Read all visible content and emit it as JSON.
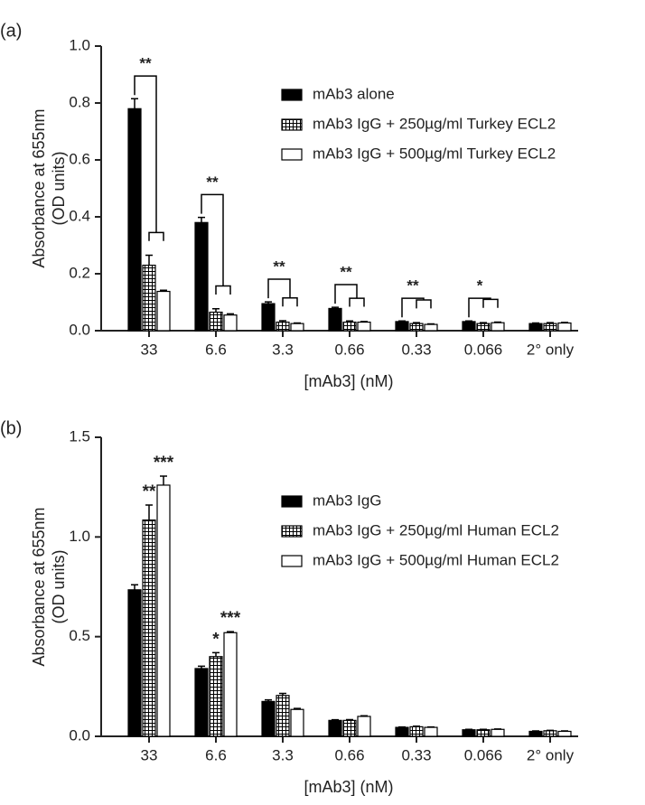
{
  "chart_data": [
    {
      "type": "bar",
      "label": "(a)",
      "ylabel": [
        "Absorbance at 655nm",
        "(OD units)"
      ],
      "xlabel": "[mAb3] (nM)",
      "categories": [
        "33",
        "6.6",
        "3.3",
        "0.66",
        "0.33",
        "0.066",
        "2° only"
      ],
      "ylim": [
        0,
        1
      ],
      "yticks": [
        {
          "value": 0,
          "label": "0.0"
        },
        0.2,
        0.4,
        0.6,
        0.8,
        {
          "value": 1,
          "label": "1.0"
        }
      ],
      "legend": "upper right",
      "series": [
        {
          "name": "mAb3 alone",
          "color": "#000000",
          "pattern": "solid",
          "values": [
            0.78,
            0.38,
            0.095,
            0.078,
            0.032,
            0.032,
            0.025
          ],
          "errors": [
            0.035,
            0.018,
            0.006,
            0.004,
            0.002,
            0.002,
            0.002
          ]
        },
        {
          "name": "mAb3 IgG + 250µg/ml Turkey ECL2",
          "color": "#000000",
          "pattern": "grid",
          "values": [
            0.23,
            0.065,
            0.03,
            0.03,
            0.025,
            0.025,
            0.025
          ],
          "errors": [
            0.035,
            0.012,
            0.005,
            0.004,
            0.003,
            0.003,
            0.003
          ]
        },
        {
          "name": "mAb3 IgG + 500µg/ml Turkey ECL2",
          "color": "#ffffff",
          "pattern": "solid",
          "values": [
            0.138,
            0.055,
            0.025,
            0.03,
            0.022,
            0.028,
            0.027
          ],
          "errors": [
            0.004,
            0.004,
            0.002,
            0.002,
            0.002,
            0.002,
            0.002
          ]
        }
      ],
      "annotations": [
        {
          "text": "**",
          "category": "33",
          "bracket": true
        },
        {
          "text": "**",
          "category": "6.6",
          "bracket": true
        },
        {
          "text": "**",
          "category": "3.3",
          "bracket": true
        },
        {
          "text": "**",
          "category": "0.66",
          "bracket": true
        },
        {
          "text": "**",
          "category": "0.33",
          "bracket": true
        },
        {
          "text": "*",
          "category": "0.066",
          "bracket": true
        }
      ]
    },
    {
      "type": "bar",
      "label": "(b)",
      "ylabel": [
        "Absorbance at 655nm",
        "(OD units)"
      ],
      "xlabel": "[mAb3] (nM)",
      "categories": [
        "33",
        "6.6",
        "3.3",
        "0.66",
        "0.33",
        "0.066",
        "2° only"
      ],
      "ylim": [
        0,
        1.5
      ],
      "yticks": [
        {
          "value": 0,
          "label": "0.0"
        },
        0.5,
        {
          "value": 1,
          "label": "1.0"
        },
        {
          "value": 1.5,
          "label": "1.5"
        }
      ],
      "legend": "upper right",
      "series": [
        {
          "name": "mAb3 IgG",
          "color": "#000000",
          "pattern": "solid",
          "values": [
            0.735,
            0.34,
            0.175,
            0.08,
            0.045,
            0.033,
            0.025
          ],
          "errors": [
            0.025,
            0.012,
            0.008,
            0.003,
            0.002,
            0.002,
            0.002
          ]
        },
        {
          "name": "mAb3 IgG + 250µg/ml Human ECL2",
          "color": "#000000",
          "pattern": "grid",
          "values": [
            1.085,
            0.4,
            0.205,
            0.08,
            0.048,
            0.033,
            0.028
          ],
          "errors": [
            0.075,
            0.02,
            0.01,
            0.004,
            0.003,
            0.002,
            0.002
          ]
        },
        {
          "name": "mAb3 IgG + 500µg/ml Human ECL2",
          "color": "#ffffff",
          "pattern": "solid",
          "values": [
            1.26,
            0.52,
            0.135,
            0.1,
            0.045,
            0.035,
            0.025
          ],
          "errors": [
            0.045,
            0.005,
            0.005,
            0.003,
            0.002,
            0.002,
            0.002
          ]
        }
      ],
      "annotations": [
        {
          "text": "**",
          "category": "33",
          "series": "mAb3 IgG + 250µg/ml Human ECL2"
        },
        {
          "text": "***",
          "category": "33",
          "series": "mAb3 IgG + 500µg/ml Human ECL2"
        },
        {
          "text": "*",
          "category": "6.6",
          "series": "mAb3 IgG + 250µg/ml Human ECL2"
        },
        {
          "text": "***",
          "category": "6.6",
          "series": "mAb3 IgG + 500µg/ml Human ECL2"
        }
      ]
    }
  ]
}
